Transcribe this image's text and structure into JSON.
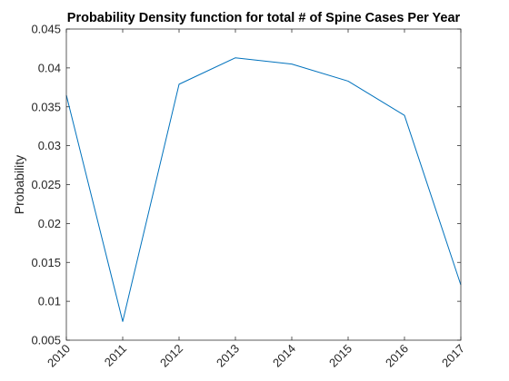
{
  "chart_data": {
    "type": "line",
    "title": "Probability Density function for total # of Spine Cases Per Year",
    "xlabel": "",
    "ylabel": "Probability",
    "x": [
      2010,
      2011,
      2012,
      2013,
      2014,
      2015,
      2016,
      2017
    ],
    "x_tick_labels": [
      "2010",
      "2011",
      "2012",
      "2013",
      "2014",
      "2015",
      "2016",
      "2017"
    ],
    "xlim": [
      2010,
      2017
    ],
    "ylim": [
      0.005,
      0.045
    ],
    "y_ticks": [
      0.005,
      0.01,
      0.015,
      0.02,
      0.025,
      0.03,
      0.035,
      0.04,
      0.045
    ],
    "y_tick_labels": [
      "0.005",
      "0.01",
      "0.015",
      "0.02",
      "0.025",
      "0.03",
      "0.035",
      "0.04",
      "0.045"
    ],
    "series": [
      {
        "values": [
          0.0365,
          0.0074,
          0.0379,
          0.0413,
          0.0405,
          0.0383,
          0.0339,
          0.0121
        ],
        "color": "#0072BD"
      }
    ],
    "grid": false,
    "legend": "none",
    "x_tick_rotation": "45deg"
  }
}
